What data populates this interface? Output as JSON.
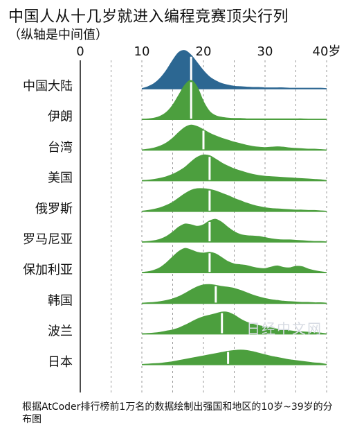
{
  "title": "中国人从十几岁就进入编程竞赛顶尖行列",
  "subtitle": "（纵轴是中间值）",
  "footnote": "根据AtCoder排行榜前1万名的数据绘制出强国和地区的10岁~39岁的分布图",
  "watermark": "日经中文网",
  "chart_data": {
    "type": "area",
    "subtype": "ridgeline",
    "xlim": [
      0,
      40
    ],
    "x_ticks": [
      {
        "value": 0,
        "label": "0"
      },
      {
        "value": 10,
        "label": "10"
      },
      {
        "value": 20,
        "label": "20"
      },
      {
        "value": 30,
        "label": "30"
      },
      {
        "value": 40,
        "label": "40岁"
      }
    ],
    "grid": "dashed vertical lines every 5 years",
    "colors": {
      "highlight": "#2c6792",
      "default": "#4c9f3e",
      "median_line": "#ffffff"
    },
    "x": [
      10,
      11,
      12,
      13,
      14,
      15,
      16,
      17,
      18,
      19,
      20,
      21,
      22,
      23,
      24,
      25,
      26,
      27,
      28,
      29,
      30,
      31,
      32,
      33,
      34,
      35,
      36,
      37,
      38,
      39,
      40
    ],
    "series": [
      {
        "name": "中国大陆",
        "color": "#2c6792",
        "median": 18,
        "values": [
          0.0,
          0.05,
          0.13,
          0.27,
          0.47,
          0.72,
          0.93,
          0.98,
          0.86,
          0.66,
          0.46,
          0.3,
          0.2,
          0.13,
          0.09,
          0.06,
          0.05,
          0.04,
          0.03,
          0.03,
          0.02,
          0.02,
          0.02,
          0.02,
          0.01,
          0.01,
          0.01,
          0.01,
          0.01,
          0.01,
          0.0
        ]
      },
      {
        "name": "伊朗",
        "color": "#4c9f3e",
        "median": 18,
        "values": [
          0.0,
          0.01,
          0.03,
          0.08,
          0.18,
          0.36,
          0.62,
          0.88,
          1.0,
          0.82,
          0.45,
          0.2,
          0.09,
          0.05,
          0.03,
          0.02,
          0.02,
          0.01,
          0.01,
          0.01,
          0.01,
          0.01,
          0.01,
          0.01,
          0.01,
          0.01,
          0.01,
          0.0,
          0.0,
          0.0,
          0.0
        ]
      },
      {
        "name": "台湾",
        "color": "#4c9f3e",
        "median": 20,
        "values": [
          0.0,
          0.02,
          0.05,
          0.1,
          0.18,
          0.3,
          0.45,
          0.58,
          0.64,
          0.6,
          0.52,
          0.43,
          0.36,
          0.3,
          0.25,
          0.2,
          0.16,
          0.12,
          0.09,
          0.07,
          0.06,
          0.07,
          0.08,
          0.07,
          0.05,
          0.04,
          0.03,
          0.02,
          0.02,
          0.01,
          0.0
        ]
      },
      {
        "name": "美国",
        "color": "#4c9f3e",
        "median": 21,
        "values": [
          0.0,
          0.01,
          0.03,
          0.06,
          0.1,
          0.16,
          0.24,
          0.34,
          0.48,
          0.6,
          0.66,
          0.64,
          0.55,
          0.45,
          0.37,
          0.3,
          0.25,
          0.2,
          0.16,
          0.13,
          0.11,
          0.1,
          0.09,
          0.08,
          0.07,
          0.06,
          0.05,
          0.04,
          0.03,
          0.02,
          0.0
        ]
      },
      {
        "name": "俄罗斯",
        "color": "#4c9f3e",
        "median": 21,
        "values": [
          0.0,
          0.02,
          0.05,
          0.09,
          0.15,
          0.23,
          0.34,
          0.45,
          0.54,
          0.58,
          0.58,
          0.56,
          0.52,
          0.46,
          0.4,
          0.33,
          0.27,
          0.21,
          0.16,
          0.12,
          0.09,
          0.07,
          0.06,
          0.05,
          0.04,
          0.03,
          0.03,
          0.02,
          0.02,
          0.01,
          0.0
        ]
      },
      {
        "name": "罗马尼亚",
        "color": "#4c9f3e",
        "median": 21,
        "values": [
          0.0,
          0.01,
          0.03,
          0.07,
          0.14,
          0.25,
          0.38,
          0.46,
          0.44,
          0.4,
          0.44,
          0.54,
          0.58,
          0.5,
          0.37,
          0.26,
          0.19,
          0.16,
          0.15,
          0.14,
          0.11,
          0.08,
          0.06,
          0.05,
          0.05,
          0.04,
          0.03,
          0.02,
          0.01,
          0.01,
          0.0
        ]
      },
      {
        "name": "保加利亚",
        "color": "#4c9f3e",
        "median": 21,
        "values": [
          0.0,
          0.02,
          0.06,
          0.13,
          0.25,
          0.4,
          0.54,
          0.62,
          0.58,
          0.52,
          0.5,
          0.52,
          0.48,
          0.38,
          0.28,
          0.22,
          0.2,
          0.18,
          0.14,
          0.11,
          0.1,
          0.14,
          0.17,
          0.13,
          0.12,
          0.16,
          0.15,
          0.09,
          0.05,
          0.02,
          0.0
        ]
      },
      {
        "name": "韩国",
        "color": "#4c9f3e",
        "median": 22,
        "values": [
          0.0,
          0.01,
          0.02,
          0.04,
          0.07,
          0.11,
          0.17,
          0.25,
          0.34,
          0.42,
          0.47,
          0.48,
          0.46,
          0.43,
          0.41,
          0.38,
          0.33,
          0.27,
          0.21,
          0.16,
          0.12,
          0.09,
          0.07,
          0.05,
          0.04,
          0.03,
          0.02,
          0.02,
          0.01,
          0.01,
          0.0
        ]
      },
      {
        "name": "波兰",
        "color": "#4c9f3e",
        "median": 23,
        "values": [
          0.0,
          0.01,
          0.02,
          0.04,
          0.07,
          0.1,
          0.15,
          0.22,
          0.3,
          0.38,
          0.44,
          0.48,
          0.52,
          0.56,
          0.55,
          0.48,
          0.38,
          0.3,
          0.25,
          0.21,
          0.18,
          0.15,
          0.12,
          0.1,
          0.08,
          0.06,
          0.05,
          0.04,
          0.03,
          0.02,
          0.0
        ]
      },
      {
        "name": "日本",
        "color": "#4c9f3e",
        "median": 24,
        "values": [
          0.0,
          0.01,
          0.02,
          0.03,
          0.05,
          0.07,
          0.1,
          0.13,
          0.16,
          0.19,
          0.22,
          0.25,
          0.28,
          0.31,
          0.34,
          0.36,
          0.37,
          0.36,
          0.33,
          0.29,
          0.25,
          0.21,
          0.18,
          0.15,
          0.12,
          0.1,
          0.08,
          0.06,
          0.04,
          0.03,
          0.0
        ]
      }
    ]
  }
}
